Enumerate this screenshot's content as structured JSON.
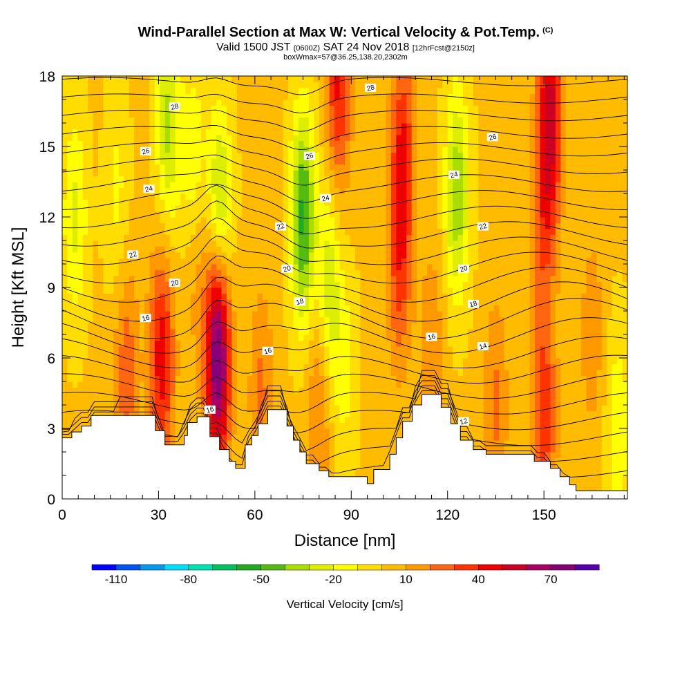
{
  "header": {
    "title": "Wind-Parallel Section at Max W: Vertical Velocity & Pot.Temp.",
    "title_mark": "(C)",
    "valid_prefix": "Valid 1500 JST",
    "valid_utc": "(0600Z)",
    "valid_date": "SAT 24 Nov 2018",
    "fcst_info": "[12hrFcst@2150z]",
    "box_info": "boxWmax=57@36.25,138.20,2302m"
  },
  "chart_data": {
    "type": "heatmap",
    "xlabel": "Distance [nm]",
    "ylabel": "Height [Kft MSL]",
    "xlim": [
      0,
      176
    ],
    "ylim": [
      0,
      18
    ],
    "x_ticks": [
      0,
      30,
      60,
      90,
      120,
      150
    ],
    "y_ticks": [
      0,
      3,
      6,
      9,
      12,
      15,
      18
    ],
    "colorbar": {
      "title": "Vertical Velocity [cm/s]",
      "range": [
        -120,
        90
      ],
      "step": 10,
      "tick_values": [
        -110,
        -80,
        -50,
        -20,
        10,
        40,
        70
      ],
      "colors": [
        "#0000ff",
        "#0055ee",
        "#0099ee",
        "#00ddff",
        "#00e0b0",
        "#00c060",
        "#22aa22",
        "#55bb11",
        "#aadd00",
        "#ddee00",
        "#ffff00",
        "#ffdd00",
        "#ffbb00",
        "#ff9900",
        "#ff6611",
        "#ff3300",
        "#ee0000",
        "#cc0022",
        "#aa0066",
        "#880077",
        "#5500aa"
      ]
    },
    "velocity_features": [
      {
        "x": 4,
        "z": 12,
        "w": -25
      },
      {
        "x": 17,
        "z": 13,
        "w": -15
      },
      {
        "x": 33,
        "z": 16,
        "w": -35
      },
      {
        "x": 41,
        "z": 14,
        "w": -22
      },
      {
        "x": 49,
        "z": 12,
        "w": -45
      },
      {
        "x": 75,
        "z": 12,
        "w": -55
      },
      {
        "x": 83,
        "z": 9,
        "w": -30
      },
      {
        "x": 88,
        "z": 5.5,
        "w": -15
      },
      {
        "x": 123,
        "z": 13,
        "w": -40
      },
      {
        "x": 31,
        "z": 6,
        "w": 45
      },
      {
        "x": 48.5,
        "z": 5.5,
        "w": 57
      },
      {
        "x": 48.5,
        "z": 8,
        "w": 35
      },
      {
        "x": 42,
        "z": 10,
        "w": 15
      },
      {
        "x": 20,
        "z": 5.5,
        "w": 25
      },
      {
        "x": 62,
        "z": 4.5,
        "w": 20
      },
      {
        "x": 80,
        "z": 4,
        "w": 22
      },
      {
        "x": 86,
        "z": 17.5,
        "w": 40
      },
      {
        "x": 105,
        "z": 10,
        "w": 30
      },
      {
        "x": 106,
        "z": 15,
        "w": 35
      },
      {
        "x": 115,
        "z": 6,
        "w": 18
      },
      {
        "x": 152,
        "z": 16.5,
        "w": 50
      },
      {
        "x": 150,
        "z": 12,
        "w": 25
      },
      {
        "x": 150,
        "z": 3.5,
        "w": 35
      },
      {
        "x": 165,
        "z": 7,
        "w": 15
      },
      {
        "x": 173,
        "z": 3,
        "w": -20
      },
      {
        "x": 135,
        "z": 4,
        "w": 20
      }
    ],
    "theta_contours": [
      12,
      14,
      16,
      18,
      20,
      22,
      24,
      26,
      28
    ],
    "theta_labels": [
      {
        "text": "28",
        "x": 35,
        "z": 16.7
      },
      {
        "text": "28",
        "x": 96,
        "z": 17.5
      },
      {
        "text": "26",
        "x": 26,
        "z": 14.8
      },
      {
        "text": "26",
        "x": 77,
        "z": 14.6
      },
      {
        "text": "26",
        "x": 134,
        "z": 15.4
      },
      {
        "text": "24",
        "x": 27,
        "z": 13.2
      },
      {
        "text": "24",
        "x": 82,
        "z": 12.8
      },
      {
        "text": "24",
        "x": 122,
        "z": 13.8
      },
      {
        "text": "22",
        "x": 22,
        "z": 10.4
      },
      {
        "text": "22",
        "x": 68,
        "z": 11.6
      },
      {
        "text": "22",
        "x": 131,
        "z": 11.6
      },
      {
        "text": "20",
        "x": 35,
        "z": 9.2
      },
      {
        "text": "20",
        "x": 70,
        "z": 9.8
      },
      {
        "text": "20",
        "x": 125,
        "z": 9.8
      },
      {
        "text": "18",
        "x": 74,
        "z": 8.4
      },
      {
        "text": "18",
        "x": 128,
        "z": 8.3
      },
      {
        "text": "16",
        "x": 26,
        "z": 7.7
      },
      {
        "text": "16",
        "x": 64,
        "z": 6.3
      },
      {
        "text": "16",
        "x": 115,
        "z": 6.9
      },
      {
        "text": "16",
        "x": 46,
        "z": 3.8
      },
      {
        "text": "14",
        "x": 131,
        "z": 6.5
      },
      {
        "text": "12",
        "x": 125,
        "z": 3.3
      }
    ],
    "terrain": [
      [
        0,
        2.6
      ],
      [
        3,
        2.6
      ],
      [
        3,
        2.85
      ],
      [
        6,
        2.85
      ],
      [
        6,
        3.1
      ],
      [
        9,
        3.1
      ],
      [
        9,
        3.55
      ],
      [
        29,
        3.55
      ],
      [
        29,
        2.9
      ],
      [
        32,
        2.9
      ],
      [
        32,
        2.3
      ],
      [
        38,
        2.3
      ],
      [
        38,
        2.7
      ],
      [
        39,
        2.7
      ],
      [
        39,
        3.25
      ],
      [
        42,
        3.25
      ],
      [
        42,
        3.5
      ],
      [
        46,
        3.5
      ],
      [
        46,
        2.65
      ],
      [
        49,
        2.65
      ],
      [
        49,
        2.1
      ],
      [
        52,
        2.1
      ],
      [
        52,
        1.6
      ],
      [
        54,
        1.6
      ],
      [
        54,
        1.3
      ],
      [
        57,
        1.3
      ],
      [
        57,
        2.3
      ],
      [
        59,
        2.3
      ],
      [
        59,
        2.7
      ],
      [
        61,
        2.7
      ],
      [
        61,
        3.2
      ],
      [
        64,
        3.2
      ],
      [
        64,
        3.8
      ],
      [
        70,
        3.8
      ],
      [
        70,
        3.1
      ],
      [
        72,
        3.1
      ],
      [
        72,
        2.5
      ],
      [
        74,
        2.5
      ],
      [
        74,
        2.0
      ],
      [
        76,
        2.0
      ],
      [
        76,
        1.5
      ],
      [
        80,
        1.5
      ],
      [
        80,
        1.2
      ],
      [
        83,
        1.2
      ],
      [
        83,
        0.95
      ],
      [
        95,
        0.95
      ],
      [
        95,
        0.65
      ],
      [
        97,
        0.65
      ],
      [
        97,
        1.25
      ],
      [
        102,
        1.25
      ],
      [
        102,
        1.9
      ],
      [
        104,
        1.9
      ],
      [
        104,
        2.6
      ],
      [
        106,
        2.6
      ],
      [
        106,
        3.3
      ],
      [
        109,
        3.3
      ],
      [
        109,
        4.0
      ],
      [
        112,
        4.0
      ],
      [
        112,
        4.45
      ],
      [
        118,
        4.45
      ],
      [
        118,
        3.9
      ],
      [
        121,
        3.9
      ],
      [
        121,
        3.2
      ],
      [
        124,
        3.2
      ],
      [
        124,
        2.5
      ],
      [
        128,
        2.5
      ],
      [
        128,
        2.1
      ],
      [
        132,
        2.1
      ],
      [
        132,
        1.9
      ],
      [
        138,
        1.9
      ],
      [
        138,
        1.9
      ],
      [
        147,
        1.9
      ],
      [
        147,
        1.6
      ],
      [
        152,
        1.6
      ],
      [
        152,
        1.3
      ],
      [
        155,
        1.3
      ],
      [
        155,
        0.95
      ],
      [
        158,
        0.95
      ],
      [
        158,
        0.6
      ],
      [
        160,
        0.6
      ],
      [
        160,
        0.35
      ],
      [
        176,
        0.35
      ]
    ]
  }
}
